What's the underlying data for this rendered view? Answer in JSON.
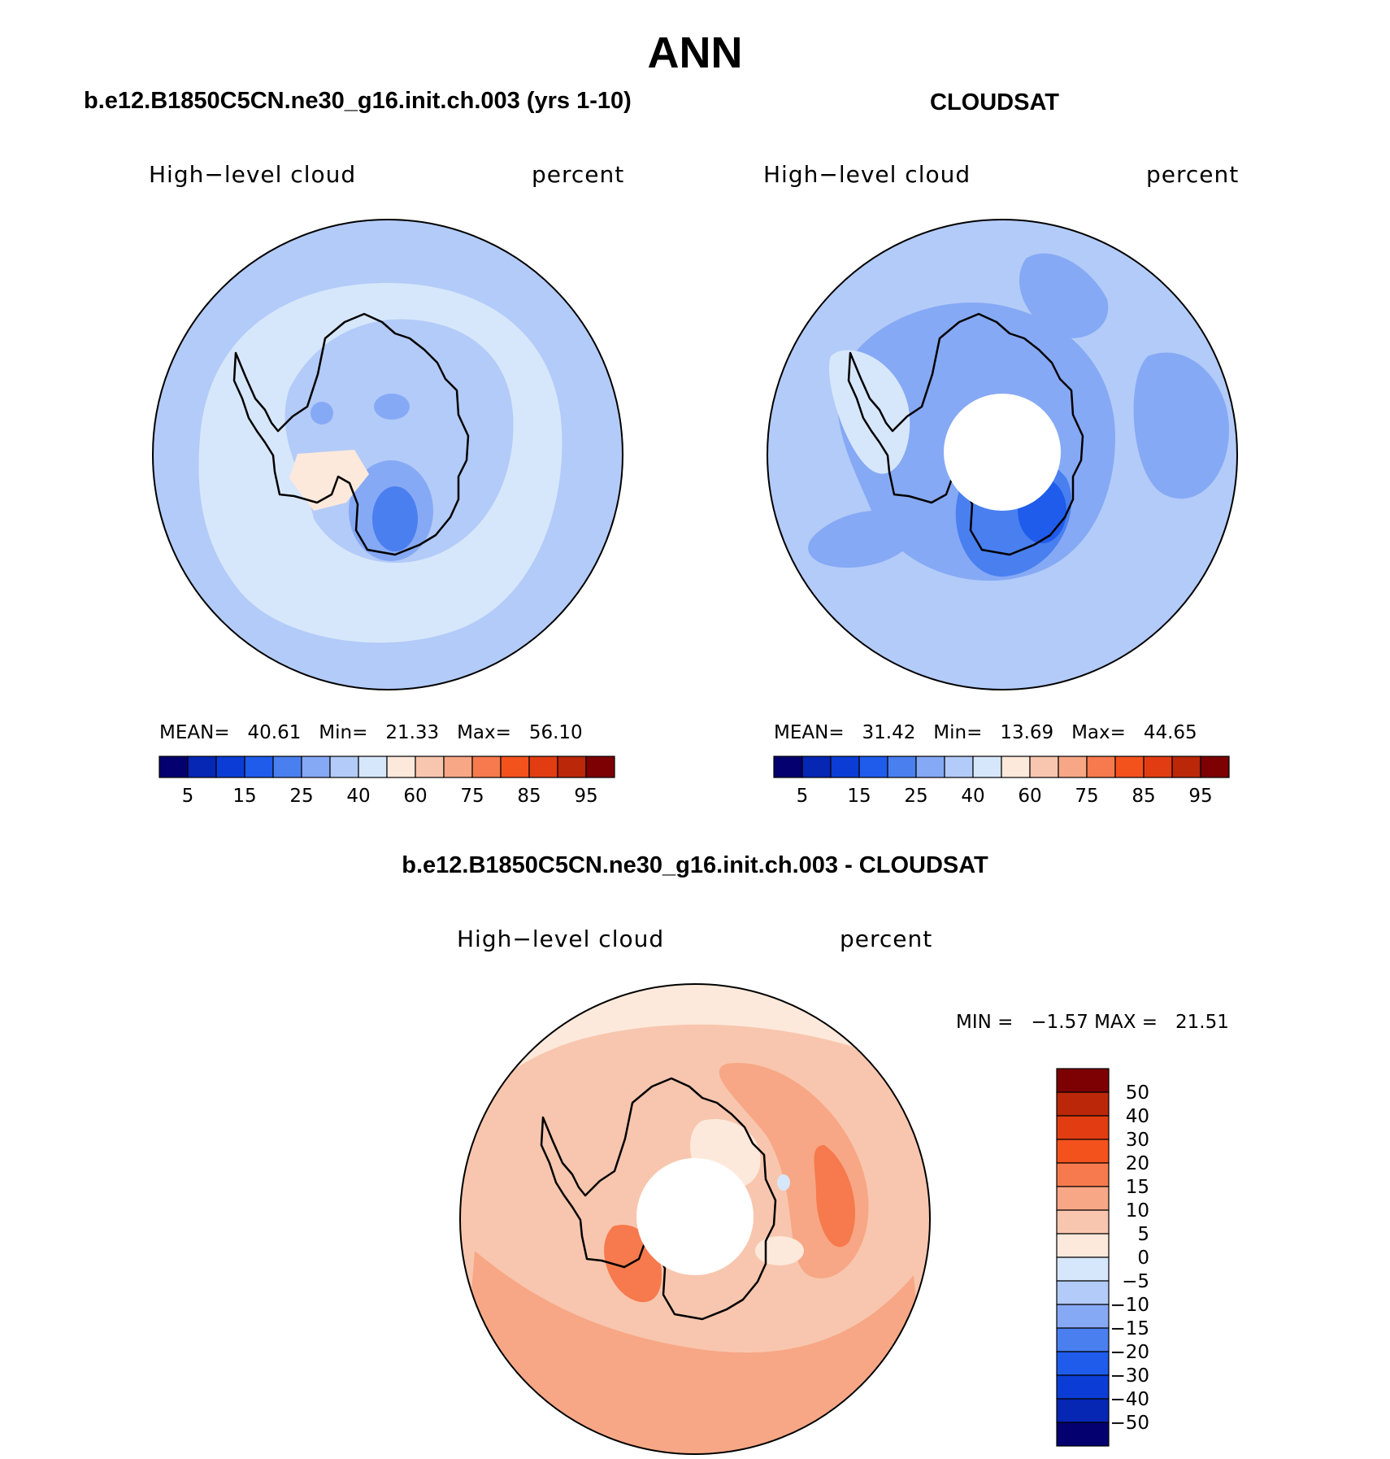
{
  "figure_title": "ANN",
  "panels": [
    {
      "title": "b.e12.B1850C5CN.ne30_g16.init.ch.003 (yrs 1-10)",
      "left_label": "High−level cloud",
      "right_label": "percent",
      "stats": "MEAN=   40.61   Min=   21.33   Max=   56.10",
      "colorbar_labels": [
        "5",
        "15",
        "25",
        "40",
        "60",
        "75",
        "85",
        "95"
      ]
    },
    {
      "title": "CLOUDSAT",
      "left_label": "High−level cloud",
      "right_label": "percent",
      "stats": "MEAN=   31.42   Min=   13.69   Max=   44.65",
      "colorbar_labels": [
        "5",
        "15",
        "25",
        "40",
        "60",
        "75",
        "85",
        "95"
      ]
    },
    {
      "title": "b.e12.B1850C5CN.ne30_g16.init.ch.003 - CLOUDSAT",
      "left_label": "High−level cloud",
      "right_label": "percent",
      "stats": "MIN =   −1.57 MAX =   21.51",
      "colorbar_labels": [
        "50",
        "40",
        "30",
        "20",
        "15",
        "10",
        "5",
        "0",
        "−5",
        "−10",
        "−15",
        "−20",
        "−30",
        "−40",
        "−50"
      ]
    }
  ],
  "chart_data": [
    {
      "type": "heatmap",
      "projection": "south polar stereographic",
      "levels": [
        5,
        10,
        15,
        20,
        25,
        30,
        40,
        50,
        60,
        70,
        75,
        80,
        85,
        90,
        95
      ],
      "mean": 40.61,
      "min": 21.33,
      "max": 56.1,
      "palette": [
        "#04006f",
        "#0626b4",
        "#0b3dd6",
        "#1f5ceb",
        "#4a7ff0",
        "#86a9f5",
        "#b3cbf8",
        "#d7e7fb",
        "#fde9db",
        "#f8c6ae",
        "#f7a785",
        "#f67a4d",
        "#f4521d",
        "#e23d12",
        "#ba2709",
        "#7d0102"
      ]
    },
    {
      "type": "heatmap",
      "projection": "south polar stereographic",
      "levels": [
        5,
        10,
        15,
        20,
        25,
        30,
        40,
        50,
        60,
        70,
        75,
        80,
        85,
        90,
        95
      ],
      "mean": 31.42,
      "min": 13.69,
      "max": 44.65,
      "palette": [
        "#04006f",
        "#0626b4",
        "#0b3dd6",
        "#1f5ceb",
        "#4a7ff0",
        "#86a9f5",
        "#b3cbf8",
        "#d7e7fb",
        "#fde9db",
        "#f8c6ae",
        "#f7a785",
        "#f67a4d",
        "#f4521d",
        "#e23d12",
        "#ba2709",
        "#7d0102"
      ]
    },
    {
      "type": "heatmap",
      "projection": "south polar stereographic",
      "levels": [
        -50,
        -40,
        -30,
        -20,
        -15,
        -10,
        -5,
        0,
        5,
        10,
        15,
        20,
        30,
        40,
        50
      ],
      "min": -1.57,
      "max": 21.51,
      "palette_top_to_bottom": [
        "#7d0102",
        "#ba2709",
        "#e23d12",
        "#f4521d",
        "#f67a4d",
        "#f7a785",
        "#f8c6ae",
        "#fde9db",
        "#d7e7fb",
        "#b3cbf8",
        "#86a9f5",
        "#4a7ff0",
        "#1f5ceb",
        "#0b3dd6",
        "#0626b4",
        "#04006f"
      ]
    }
  ]
}
